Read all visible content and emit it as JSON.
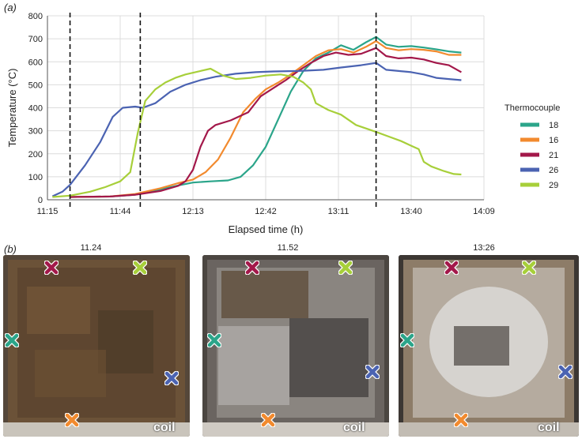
{
  "panel_a_label": "(a)",
  "panel_b_label": "(b)",
  "colors": {
    "18": "#2ba58a",
    "16": "#f28a2e",
    "21": "#a3184a",
    "26": "#4b63b2",
    "29": "#a7cf3a"
  },
  "chart_data": {
    "type": "line",
    "xlabel": "Elapsed time (h)",
    "ylabel": "Temperature (°C)",
    "x_ticks": [
      "11:15",
      "11:44",
      "12:13",
      "12:42",
      "13:11",
      "13:40",
      "14:09"
    ],
    "y_ticks": [
      "0",
      "100",
      "200",
      "300",
      "400",
      "500",
      "600",
      "700",
      "800"
    ],
    "xlim": [
      "11:15",
      "14:09"
    ],
    "ylim": [
      0,
      800
    ],
    "grid": true,
    "legend_title": "Thermocouple",
    "legend_position": "right",
    "vlines": [
      "11:24",
      "11:52",
      "13:26"
    ],
    "series": [
      {
        "name": "18",
        "points": [
          [
            "11:24",
            12
          ],
          [
            "11:40",
            14
          ],
          [
            "11:50",
            22
          ],
          [
            "12:00",
            45
          ],
          [
            "12:07",
            62
          ],
          [
            "12:13",
            75
          ],
          [
            "12:20",
            80
          ],
          [
            "12:27",
            84
          ],
          [
            "12:32",
            100
          ],
          [
            "12:37",
            150
          ],
          [
            "12:42",
            230
          ],
          [
            "12:47",
            350
          ],
          [
            "12:52",
            470
          ],
          [
            "12:57",
            560
          ],
          [
            "13:02",
            615
          ],
          [
            "13:07",
            640
          ],
          [
            "13:12",
            672
          ],
          [
            "13:17",
            652
          ],
          [
            "13:22",
            685
          ],
          [
            "13:26",
            708
          ],
          [
            "13:30",
            675
          ],
          [
            "13:35",
            665
          ],
          [
            "13:40",
            668
          ],
          [
            "13:45",
            662
          ],
          [
            "13:50",
            654
          ],
          [
            "13:55",
            645
          ],
          [
            "14:00",
            640
          ]
        ]
      },
      {
        "name": "16",
        "points": [
          [
            "11:24",
            12
          ],
          [
            "11:40",
            14
          ],
          [
            "11:50",
            25
          ],
          [
            "12:00",
            50
          ],
          [
            "12:07",
            72
          ],
          [
            "12:13",
            88
          ],
          [
            "12:18",
            120
          ],
          [
            "12:23",
            175
          ],
          [
            "12:28",
            270
          ],
          [
            "12:33",
            380
          ],
          [
            "12:38",
            440
          ],
          [
            "12:42",
            480
          ],
          [
            "12:47",
            510
          ],
          [
            "12:52",
            545
          ],
          [
            "12:57",
            585
          ],
          [
            "13:02",
            625
          ],
          [
            "13:07",
            650
          ],
          [
            "13:12",
            655
          ],
          [
            "13:17",
            640
          ],
          [
            "13:22",
            665
          ],
          [
            "13:26",
            690
          ],
          [
            "13:30",
            660
          ],
          [
            "13:35",
            650
          ],
          [
            "13:40",
            655
          ],
          [
            "13:45",
            652
          ],
          [
            "13:50",
            645
          ],
          [
            "13:55",
            630
          ],
          [
            "14:00",
            630
          ]
        ]
      },
      {
        "name": "21",
        "points": [
          [
            "11:24",
            12
          ],
          [
            "11:40",
            14
          ],
          [
            "11:50",
            22
          ],
          [
            "12:00",
            38
          ],
          [
            "12:07",
            60
          ],
          [
            "12:10",
            80
          ],
          [
            "12:13",
            130
          ],
          [
            "12:16",
            230
          ],
          [
            "12:19",
            300
          ],
          [
            "12:22",
            325
          ],
          [
            "12:28",
            345
          ],
          [
            "12:35",
            380
          ],
          [
            "12:40",
            450
          ],
          [
            "12:45",
            485
          ],
          [
            "12:50",
            520
          ],
          [
            "12:55",
            560
          ],
          [
            "13:00",
            595
          ],
          [
            "13:05",
            625
          ],
          [
            "13:10",
            640
          ],
          [
            "13:15",
            630
          ],
          [
            "13:20",
            635
          ],
          [
            "13:26",
            660
          ],
          [
            "13:30",
            625
          ],
          [
            "13:35",
            615
          ],
          [
            "13:40",
            618
          ],
          [
            "13:45",
            610
          ],
          [
            "13:50",
            595
          ],
          [
            "13:55",
            585
          ],
          [
            "14:00",
            555
          ]
        ]
      },
      {
        "name": "26",
        "points": [
          [
            "11:17",
            15
          ],
          [
            "11:21",
            35
          ],
          [
            "11:24",
            65
          ],
          [
            "11:30",
            150
          ],
          [
            "11:36",
            250
          ],
          [
            "11:41",
            360
          ],
          [
            "11:45",
            400
          ],
          [
            "11:50",
            405
          ],
          [
            "11:53",
            400
          ],
          [
            "11:58",
            420
          ],
          [
            "12:04",
            470
          ],
          [
            "12:10",
            500
          ],
          [
            "12:16",
            520
          ],
          [
            "12:22",
            535
          ],
          [
            "12:30",
            548
          ],
          [
            "12:38",
            555
          ],
          [
            "12:45",
            558
          ],
          [
            "12:55",
            560
          ],
          [
            "13:05",
            565
          ],
          [
            "13:12",
            575
          ],
          [
            "13:20",
            585
          ],
          [
            "13:26",
            595
          ],
          [
            "13:30",
            565
          ],
          [
            "13:35",
            560
          ],
          [
            "13:40",
            555
          ],
          [
            "13:45",
            545
          ],
          [
            "13:50",
            530
          ],
          [
            "13:55",
            525
          ],
          [
            "14:00",
            520
          ]
        ]
      },
      {
        "name": "29",
        "points": [
          [
            "11:17",
            12
          ],
          [
            "11:24",
            18
          ],
          [
            "11:32",
            35
          ],
          [
            "11:38",
            55
          ],
          [
            "11:44",
            80
          ],
          [
            "11:48",
            120
          ],
          [
            "11:51",
            290
          ],
          [
            "11:54",
            430
          ],
          [
            "11:58",
            480
          ],
          [
            "12:02",
            510
          ],
          [
            "12:06",
            530
          ],
          [
            "12:10",
            545
          ],
          [
            "12:16",
            560
          ],
          [
            "12:20",
            570
          ],
          [
            "12:25",
            540
          ],
          [
            "12:30",
            525
          ],
          [
            "12:36",
            530
          ],
          [
            "12:42",
            540
          ],
          [
            "12:48",
            545
          ],
          [
            "12:53",
            535
          ],
          [
            "12:57",
            510
          ],
          [
            "13:00",
            480
          ],
          [
            "13:02",
            420
          ],
          [
            "13:07",
            390
          ],
          [
            "13:12",
            370
          ],
          [
            "13:18",
            325
          ],
          [
            "13:22",
            310
          ],
          [
            "13:26",
            295
          ],
          [
            "13:31",
            275
          ],
          [
            "13:36",
            255
          ],
          [
            "13:40",
            235
          ],
          [
            "13:43",
            220
          ],
          [
            "13:45",
            165
          ],
          [
            "13:48",
            145
          ],
          [
            "13:53",
            125
          ],
          [
            "13:57",
            112
          ],
          [
            "14:00",
            110
          ]
        ]
      }
    ]
  },
  "photos": [
    {
      "caption": "11.24",
      "coil_label": "coil"
    },
    {
      "caption": "11.52",
      "coil_label": "coil"
    },
    {
      "caption": "13:26",
      "coil_label": "coil"
    }
  ]
}
